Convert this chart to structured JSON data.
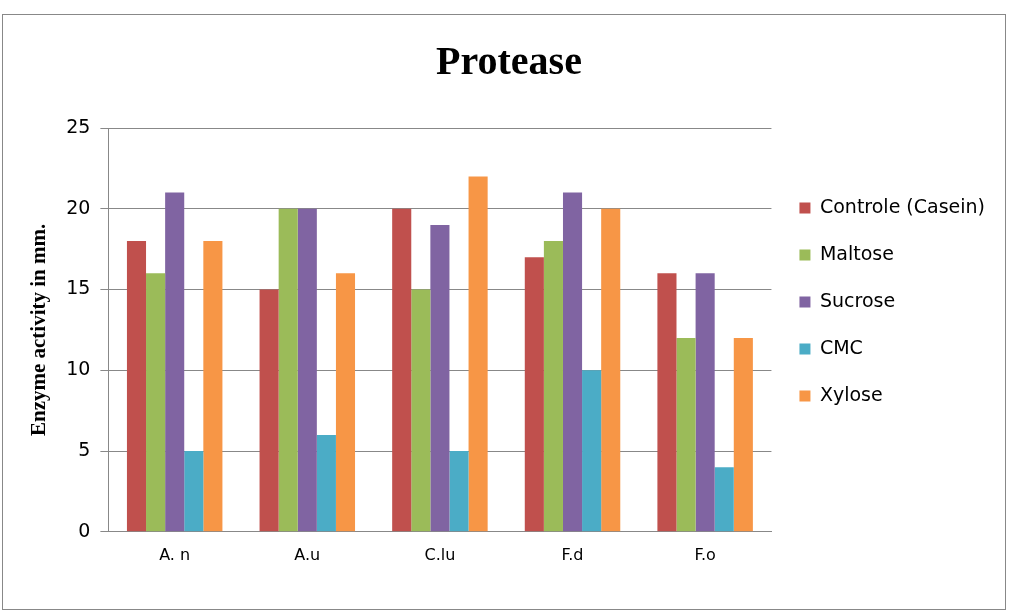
{
  "chart_data": {
    "type": "bar",
    "title": "Protease",
    "ylabel": "Enzyme activity in mm.",
    "categories": [
      "A. n",
      "A.u",
      "C.lu",
      "F.d",
      "F.o"
    ],
    "series": [
      {
        "name": "Controle (Casein)",
        "color": "#c0504d",
        "values": [
          18,
          15,
          20,
          17,
          16
        ]
      },
      {
        "name": "Maltose",
        "color": "#9bbb59",
        "values": [
          16,
          20,
          15,
          18,
          12
        ]
      },
      {
        "name": "Sucrose",
        "color": "#8064a2",
        "values": [
          21,
          20,
          19,
          21,
          16
        ]
      },
      {
        "name": "CMC",
        "color": "#4bacc6",
        "values": [
          5,
          6,
          5,
          10,
          4
        ]
      },
      {
        "name": "Xylose",
        "color": "#f79646",
        "values": [
          18,
          16,
          22,
          20,
          12
        ]
      }
    ],
    "ylim": [
      0,
      25
    ],
    "yticks": [
      0,
      5,
      10,
      15,
      20,
      25
    ],
    "grid": "y",
    "legend": "right"
  }
}
